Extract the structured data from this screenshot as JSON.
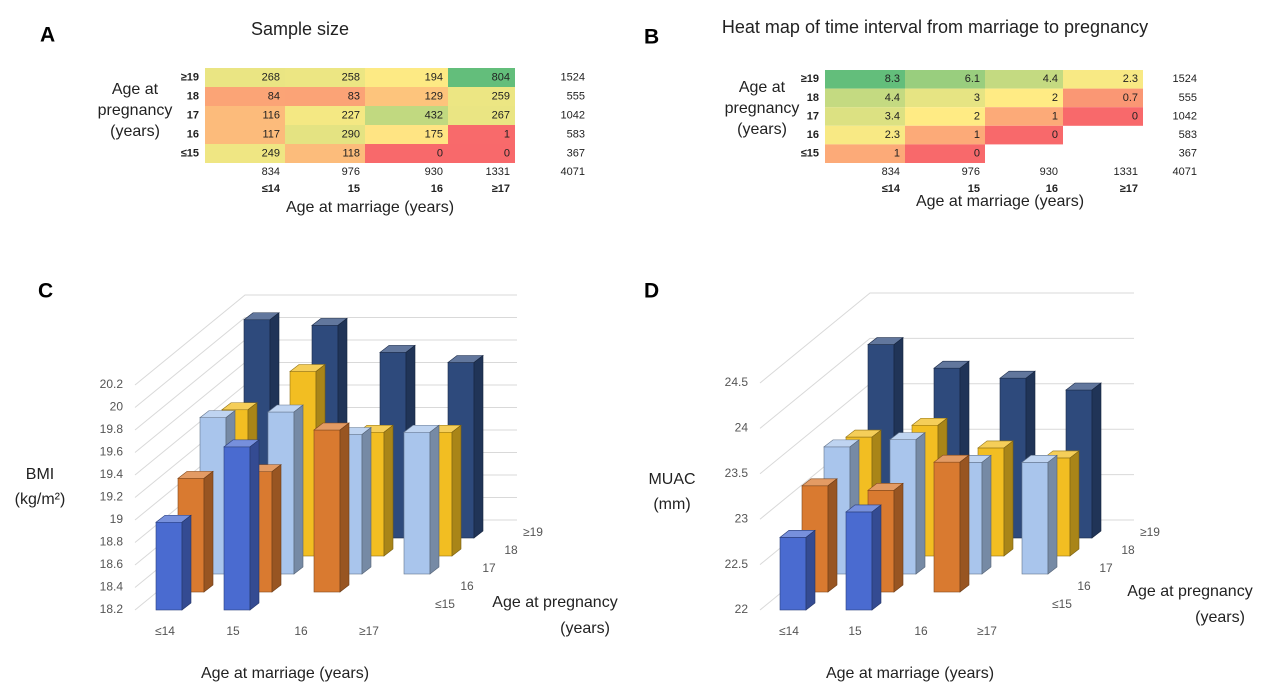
{
  "chart_data": [
    {
      "type": "heatmap",
      "panel": "A",
      "title": "Sample size",
      "ylabel": [
        "Age at",
        "pregnancy",
        "(years)"
      ],
      "xlabel": "Age at marriage (years)",
      "rows": [
        "≥19",
        "18",
        "17",
        "16",
        "≤15"
      ],
      "columns": [
        "≤14",
        "15",
        "16",
        "≥17"
      ],
      "values": [
        [
          268,
          258,
          194,
          804
        ],
        [
          84,
          83,
          129,
          259
        ],
        [
          116,
          227,
          432,
          267
        ],
        [
          117,
          290,
          175,
          1
        ],
        [
          249,
          118,
          0,
          0
        ]
      ],
      "row_totals": [
        1524,
        555,
        1042,
        583,
        367
      ],
      "column_totals": [
        834,
        976,
        930,
        1331
      ],
      "grand_total": 4071,
      "colormap": [
        "#f8696b",
        "#ffeb84",
        "#63be7b"
      ]
    },
    {
      "type": "heatmap",
      "panel": "B",
      "title": "Heat map of time interval from marriage to pregnancy",
      "ylabel": [
        "Age at",
        "pregnancy",
        "(years)"
      ],
      "xlabel": "Age at marriage (years)",
      "rows": [
        "≥19",
        "18",
        "17",
        "16",
        "≤15"
      ],
      "columns": [
        "≤14",
        "15",
        "16",
        "≥17"
      ],
      "values": [
        [
          8.3,
          6.1,
          4.4,
          2.3
        ],
        [
          4.4,
          3,
          2,
          0.7
        ],
        [
          3.4,
          2,
          1,
          0
        ],
        [
          2.3,
          1,
          0,
          null
        ],
        [
          1,
          0,
          null,
          null
        ]
      ],
      "row_totals": [
        1524,
        555,
        1042,
        583,
        367
      ],
      "column_totals": [
        834,
        976,
        930,
        1331
      ],
      "grand_total": 4071,
      "colormap": [
        "#f8696b",
        "#ffeb84",
        "#63be7b"
      ]
    },
    {
      "type": "bar3d",
      "panel": "C",
      "ylabel": [
        "BMI",
        "(kg/m²)"
      ],
      "xlabel": "Age at marriage (years)",
      "zlabel": [
        "Age at pregnancy",
        "(years)"
      ],
      "categories": [
        "≤14",
        "15",
        "16",
        "≥17"
      ],
      "series": [
        {
          "name": "≤15",
          "color": "#4a6bd0",
          "values": [
            18.98,
            19.65,
            null,
            null
          ]
        },
        {
          "name": "16",
          "color": "#d97a30",
          "values": [
            19.21,
            19.27,
            19.64,
            null
          ]
        },
        {
          "name": "17",
          "color": "#a9c5ec",
          "values": [
            19.59,
            19.64,
            19.44,
            19.46
          ]
        },
        {
          "name": "18",
          "color": "#f2be22",
          "values": [
            19.5,
            19.84,
            19.3,
            19.3
          ]
        },
        {
          "name": "≥19",
          "color": "#2e4a7c",
          "values": [
            20.14,
            20.09,
            19.85,
            19.76
          ]
        }
      ],
      "ylim": [
        18.2,
        20.2
      ],
      "yticks": [
        18.2,
        18.4,
        18.6,
        18.8,
        19,
        19.2,
        19.4,
        19.6,
        19.8,
        20,
        20.2
      ],
      "grid": true
    },
    {
      "type": "bar3d",
      "panel": "D",
      "ylabel": [
        "MUAC",
        "(mm)"
      ],
      "xlabel": "Age at marriage (years)",
      "zlabel": [
        "Age at pregnancy",
        "(years)"
      ],
      "categories": [
        "≤14",
        "15",
        "16",
        "≥17"
      ],
      "series": [
        {
          "name": "≤15",
          "color": "#4a6bd0",
          "values": [
            22.8,
            23.08,
            null,
            null
          ]
        },
        {
          "name": "16",
          "color": "#d97a30",
          "values": [
            23.17,
            23.12,
            23.43,
            null
          ]
        },
        {
          "name": "17",
          "color": "#a9c5ec",
          "values": [
            23.4,
            23.48,
            23.23,
            23.23
          ]
        },
        {
          "name": "18",
          "color": "#f2be22",
          "values": [
            23.31,
            23.44,
            23.19,
            23.08
          ]
        },
        {
          "name": "≥19",
          "color": "#2e4a7c",
          "values": [
            24.13,
            23.87,
            23.76,
            23.63
          ]
        }
      ],
      "ylim": [
        22,
        24.5
      ],
      "yticks": [
        22,
        22.5,
        23,
        23.5,
        24,
        24.5
      ],
      "grid": true
    }
  ]
}
